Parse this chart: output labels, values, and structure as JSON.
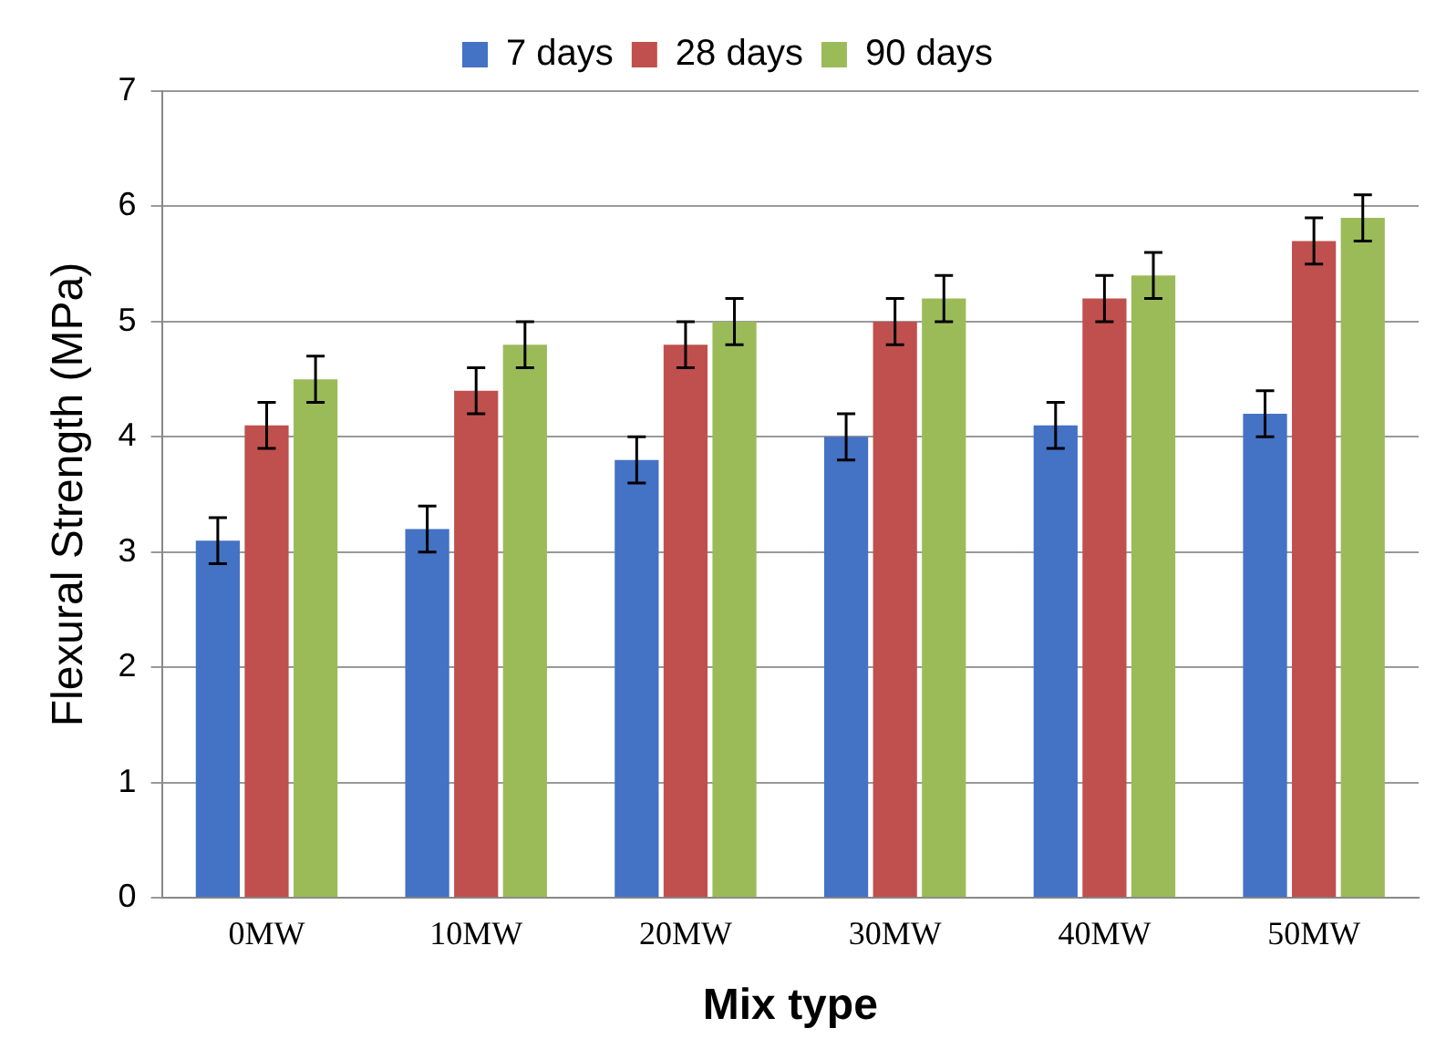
{
  "chart_data": {
    "type": "bar",
    "xlabel": "Mix type",
    "ylabel": "Flexural Strength (MPa)",
    "categories": [
      "0MW",
      "10MW",
      "20MW",
      "30MW",
      "40MW",
      "50MW"
    ],
    "series": [
      {
        "name": "7 days",
        "color": "#4472c4",
        "values": [
          3.1,
          3.2,
          3.8,
          4.0,
          4.1,
          4.2
        ],
        "errors": [
          0.2,
          0.2,
          0.2,
          0.2,
          0.2,
          0.2
        ]
      },
      {
        "name": "28 days",
        "color": "#c0504d",
        "values": [
          4.1,
          4.4,
          4.8,
          5.0,
          5.2,
          5.7
        ],
        "errors": [
          0.2,
          0.2,
          0.2,
          0.2,
          0.2,
          0.2
        ]
      },
      {
        "name": "90 days",
        "color": "#9bbb59",
        "values": [
          4.5,
          4.8,
          5.0,
          5.2,
          5.4,
          5.9
        ],
        "errors": [
          0.2,
          0.2,
          0.2,
          0.2,
          0.2,
          0.2
        ]
      }
    ],
    "ylim": [
      0,
      7
    ],
    "yticks": [
      0,
      1,
      2,
      3,
      4,
      5,
      6,
      7
    ],
    "grid": "y",
    "legend": "top"
  }
}
